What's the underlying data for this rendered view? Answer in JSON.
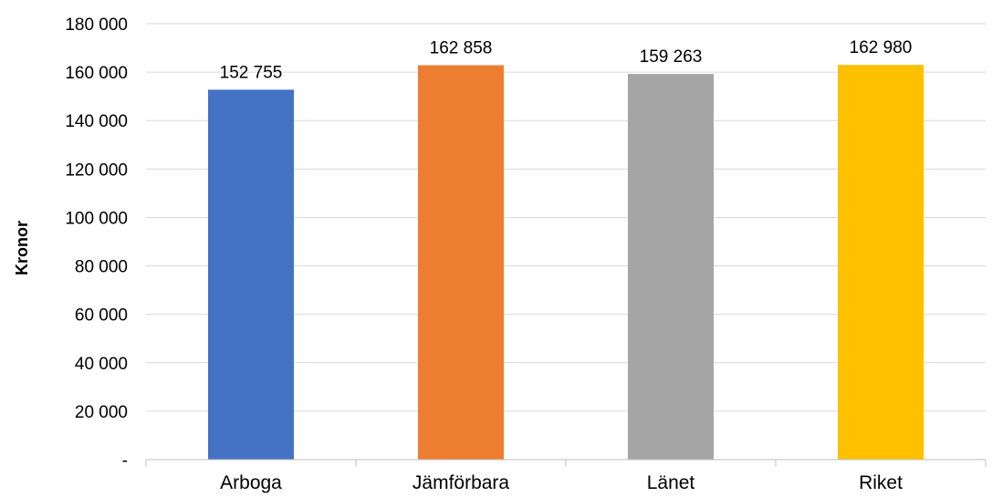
{
  "chart_data": {
    "type": "bar",
    "categories": [
      "Arboga",
      "Jämförbara",
      "Länet",
      "Riket"
    ],
    "values": [
      152755,
      162858,
      159263,
      162980
    ],
    "data_labels": [
      "152 755",
      "162 858",
      "159 263",
      "162 980"
    ],
    "colors": [
      "#4472C4",
      "#ED7D31",
      "#A5A5A5",
      "#FFC000"
    ],
    "title": "",
    "xlabel": "",
    "ylabel": "Kronor",
    "ylim": [
      0,
      180000
    ],
    "yticks": [
      0,
      20000,
      40000,
      60000,
      80000,
      100000,
      120000,
      140000,
      160000,
      180000
    ],
    "ytick_labels": [
      "-",
      "20 000",
      "40 000",
      "60 000",
      "80 000",
      "100 000",
      "120 000",
      "140 000",
      "160 000",
      "180 000"
    ],
    "grid": true,
    "legend": "none"
  }
}
